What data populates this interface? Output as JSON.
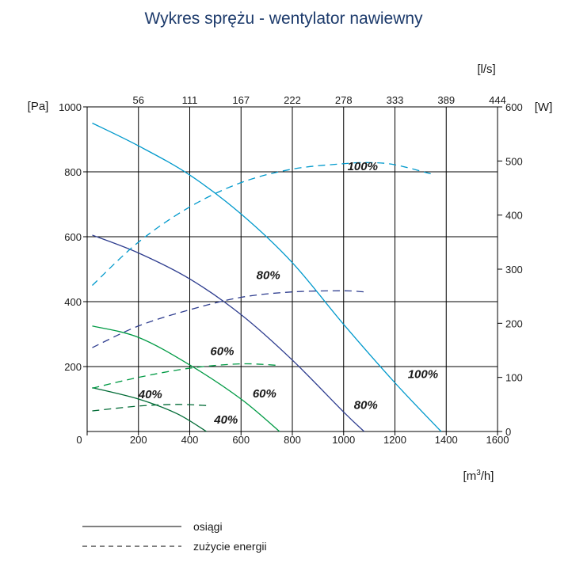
{
  "chart_data": {
    "type": "line",
    "title": "Wykres sprężu - wentylator nawiewny",
    "x_unit_left": "[Pa]",
    "x_unit_bottom_pre": "[m",
    "x_unit_bottom_sup": "3",
    "x_unit_bottom_post": "/h]",
    "top_unit": "[l/s]",
    "right_unit": "[W]",
    "xlim": [
      0,
      1600
    ],
    "ylim_left": [
      0,
      1000
    ],
    "ylim_right": [
      0,
      600
    ],
    "x_ticks": [
      "0",
      "200",
      "400",
      "600",
      "800",
      "1000",
      "1200",
      "1400",
      "1600"
    ],
    "y_ticks_left": [
      "200",
      "400",
      "600",
      "800",
      "1000"
    ],
    "y_ticks_right": [
      "0",
      "100",
      "200",
      "300",
      "400",
      "500",
      "600"
    ],
    "top_ticks": [
      "56",
      "111",
      "167",
      "222",
      "278",
      "333",
      "389",
      "444"
    ],
    "grid": true,
    "legend": {
      "position": "bottom-left",
      "items": [
        {
          "style": "solid",
          "label": "osiągi"
        },
        {
          "style": "dashed",
          "label": "zużycie energii"
        }
      ]
    },
    "curves": [
      {
        "id": "p100",
        "kind": "pressure",
        "label": "100%",
        "color": "#0099cc",
        "x": [
          20,
          200,
          400,
          600,
          800,
          1000,
          1200,
          1380
        ],
        "y": [
          950,
          880,
          790,
          670,
          520,
          330,
          150,
          0
        ]
      },
      {
        "id": "p80",
        "kind": "pressure",
        "label": "80%",
        "color": "#2e3d8f",
        "x": [
          20,
          200,
          400,
          600,
          800,
          1000,
          1080
        ],
        "y": [
          605,
          550,
          470,
          360,
          220,
          60,
          0
        ]
      },
      {
        "id": "p60",
        "kind": "pressure",
        "label": "60%",
        "color": "#009a44",
        "x": [
          20,
          200,
          400,
          600,
          750
        ],
        "y": [
          325,
          290,
          205,
          100,
          0
        ]
      },
      {
        "id": "p40",
        "kind": "pressure",
        "label": "40%",
        "color": "#006b35",
        "x": [
          20,
          200,
          350,
          465
        ],
        "y": [
          135,
          100,
          55,
          0
        ]
      },
      {
        "id": "e100",
        "kind": "power",
        "label": "100%",
        "color": "#0099cc",
        "x": [
          20,
          200,
          400,
          600,
          800,
          1000,
          1100,
          1200,
          1350
        ],
        "y": [
          270,
          350,
          415,
          460,
          485,
          495,
          497,
          493,
          475
        ]
      },
      {
        "id": "e80",
        "kind": "power",
        "label": "80%",
        "color": "#2e3d8f",
        "x": [
          20,
          200,
          400,
          600,
          800,
          1000,
          1080
        ],
        "y": [
          155,
          195,
          225,
          248,
          258,
          260,
          258
        ]
      },
      {
        "id": "e60",
        "kind": "power",
        "label": "60%",
        "color": "#009a44",
        "x": [
          20,
          200,
          400,
          600,
          750
        ],
        "y": [
          80,
          100,
          117,
          125,
          122
        ]
      },
      {
        "id": "e40",
        "kind": "power",
        "label": "40%",
        "color": "#006b35",
        "x": [
          20,
          200,
          350,
          465
        ],
        "y": [
          38,
          47,
          50,
          48
        ]
      }
    ],
    "annotations": [
      {
        "text": "100%",
        "x": 1015,
        "y_left": 805
      },
      {
        "text": "80%",
        "x": 660,
        "y_left": 470
      },
      {
        "text": "60%",
        "x": 480,
        "y_left": 235
      },
      {
        "text": "40%",
        "x": 200,
        "y_left": 102
      },
      {
        "text": "100%",
        "x": 1250,
        "y_left": 165
      },
      {
        "text": "80%",
        "x": 1040,
        "y_left": 70
      },
      {
        "text": "60%",
        "x": 645,
        "y_left": 105
      },
      {
        "text": "40%",
        "x": 495,
        "y_left": 25
      }
    ]
  }
}
